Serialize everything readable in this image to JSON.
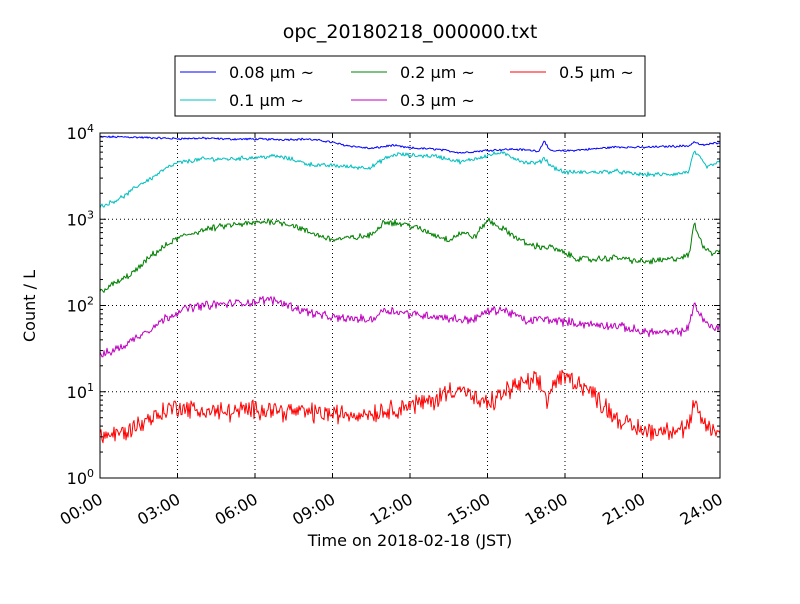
{
  "chart_data": {
    "type": "line",
    "title": "opc_20180218_000000.txt",
    "xlabel": "Time on 2018-02-18 (JST)",
    "ylabel": "Count / L",
    "x_ticks": [
      "00:00",
      "03:00",
      "06:00",
      "09:00",
      "12:00",
      "15:00",
      "18:00",
      "21:00",
      "24:00"
    ],
    "xlim_hours": [
      0,
      24
    ],
    "yscale": "log",
    "ylim": [
      1,
      10000
    ],
    "y_ticks": [
      {
        "value": 1,
        "base": "10",
        "exp": "0"
      },
      {
        "value": 10,
        "base": "10",
        "exp": "1"
      },
      {
        "value": 100,
        "base": "10",
        "exp": "2"
      },
      {
        "value": 1000,
        "base": "10",
        "exp": "3"
      },
      {
        "value": 10000,
        "base": "10",
        "exp": "4"
      }
    ],
    "grid": true,
    "legend_position": "top-center",
    "series": [
      {
        "name": "0.08 µm ~",
        "color": "#0000ff",
        "noise": 0.01,
        "x": [
          0,
          1,
          2,
          3,
          4,
          5,
          6,
          7,
          8,
          8.8,
          9.5,
          10.5,
          11.3,
          12,
          13,
          14,
          15,
          16,
          17,
          17.2,
          17.4,
          18,
          19,
          20,
          21,
          22,
          22.8,
          23,
          23.3,
          24
        ],
        "values": [
          9000,
          9000,
          8800,
          8600,
          8700,
          8500,
          8500,
          8400,
          8500,
          8000,
          7200,
          6600,
          7200,
          6700,
          6500,
          5900,
          6300,
          6500,
          6200,
          8300,
          6200,
          6200,
          6500,
          6900,
          6800,
          7000,
          7100,
          7900,
          7200,
          7800
        ]
      },
      {
        "name": "0.1 µm ~",
        "color": "#00bfbf",
        "noise": 0.02,
        "x": [
          0,
          0.5,
          1,
          1.5,
          2,
          2.5,
          3,
          4,
          5,
          6,
          6.8,
          7.5,
          8,
          8.5,
          9,
          10,
          10.5,
          11,
          11.5,
          12,
          13,
          14,
          15,
          15.5,
          16,
          16.5,
          17,
          17.2,
          17.4,
          17.7,
          18,
          19,
          20,
          20.5,
          21,
          22,
          22.5,
          22.8,
          23,
          23.5,
          24
        ],
        "values": [
          1400,
          1600,
          1900,
          2500,
          3000,
          3800,
          4500,
          5000,
          5000,
          5200,
          5400,
          4900,
          4400,
          4200,
          4200,
          4000,
          4000,
          5000,
          5700,
          5500,
          5400,
          4600,
          5500,
          5900,
          5200,
          4500,
          4500,
          5200,
          4300,
          3800,
          3500,
          3500,
          3600,
          3400,
          3300,
          3300,
          3400,
          3600,
          6200,
          4000,
          4700
        ]
      },
      {
        "name": "0.2 µm ~",
        "color": "#008000",
        "noise": 0.03,
        "x": [
          0,
          0.5,
          1,
          1.5,
          2,
          2.5,
          3,
          3.5,
          4,
          5,
          6,
          6.5,
          7,
          7.5,
          8,
          9,
          10,
          10.5,
          11,
          12,
          13,
          13.5,
          14,
          14.5,
          15,
          15.5,
          16,
          16.5,
          17,
          17.5,
          18,
          18.5,
          19,
          19.5,
          20,
          21,
          22,
          22.5,
          22.8,
          23,
          23.3,
          23.7,
          24
        ],
        "values": [
          145,
          175,
          210,
          270,
          380,
          480,
          600,
          680,
          750,
          850,
          900,
          950,
          920,
          850,
          720,
          580,
          620,
          650,
          950,
          850,
          650,
          580,
          700,
          620,
          980,
          800,
          650,
          520,
          480,
          470,
          400,
          350,
          340,
          350,
          360,
          320,
          340,
          360,
          380,
          900,
          520,
          400,
          450
        ]
      },
      {
        "name": "0.3 µm ~",
        "color": "#bf00bf",
        "noise": 0.04,
        "x": [
          0,
          0.5,
          1,
          1.5,
          2,
          2.5,
          3,
          3.5,
          4,
          5,
          6,
          6.5,
          7,
          7.5,
          8,
          8.5,
          9,
          10,
          10.5,
          11,
          12,
          13,
          14,
          14.5,
          15,
          15.5,
          16,
          16.5,
          17,
          17.5,
          18,
          18.5,
          19,
          20,
          21,
          22,
          22.5,
          22.8,
          23,
          23.3,
          23.7,
          24
        ],
        "values": [
          26,
          30,
          35,
          45,
          55,
          70,
          85,
          95,
          100,
          105,
          110,
          118,
          110,
          95,
          85,
          78,
          72,
          70,
          68,
          90,
          80,
          75,
          68,
          70,
          85,
          90,
          80,
          65,
          70,
          68,
          65,
          62,
          60,
          58,
          50,
          48,
          50,
          55,
          110,
          70,
          55,
          58
        ]
      },
      {
        "name": "0.5 µm ~",
        "color": "#ff0000",
        "noise": 0.09,
        "x": [
          0,
          0.5,
          1,
          1.5,
          2,
          2.5,
          3,
          3.5,
          4,
          5,
          6,
          6.5,
          7,
          8,
          9,
          10,
          11,
          12,
          13,
          13.5,
          14,
          14.5,
          15,
          15.5,
          16,
          16.5,
          17,
          17.3,
          17.6,
          18,
          18.5,
          19,
          19.5,
          20,
          20.5,
          21,
          21.5,
          22,
          22.5,
          22.8,
          23,
          23.3,
          23.7,
          24
        ],
        "values": [
          3.1,
          3.2,
          3.4,
          4.2,
          5.0,
          6.0,
          6.8,
          6.2,
          6.0,
          5.8,
          6.2,
          6.5,
          6.0,
          5.8,
          5.5,
          5.5,
          6.0,
          7.0,
          8.0,
          10.5,
          11.0,
          8.0,
          7.0,
          9.0,
          11.5,
          12.5,
          13.0,
          8.0,
          13.0,
          15.0,
          13.0,
          10.0,
          7.0,
          5.0,
          4.0,
          3.6,
          3.5,
          3.7,
          3.6,
          4.0,
          7.0,
          4.5,
          3.6,
          3.4
        ]
      }
    ]
  }
}
